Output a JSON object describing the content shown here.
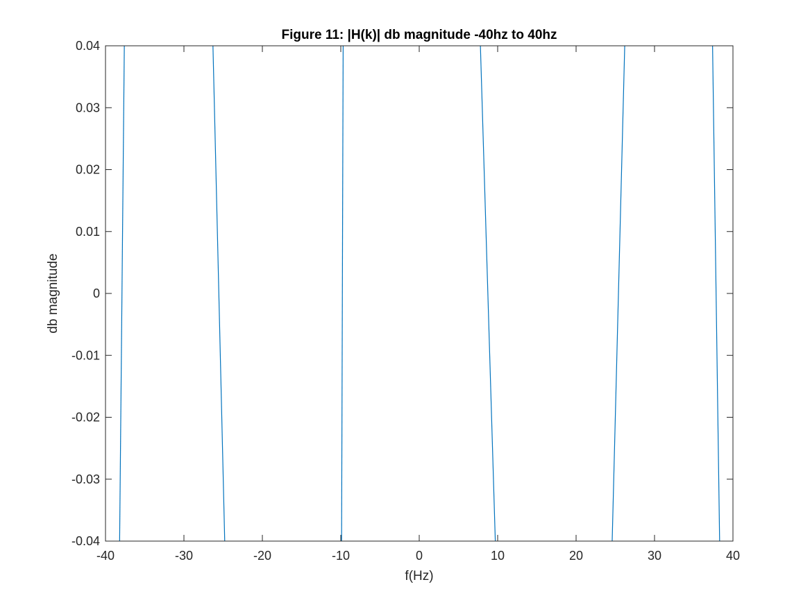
{
  "chart_data": {
    "type": "line",
    "title": "Figure 11: |H(k)| db magnitude -40hz to 40hz",
    "xlabel": "f(Hz)",
    "ylabel": "db magnitude",
    "xlim": [
      -40,
      40
    ],
    "ylim": [
      -0.04,
      0.04
    ],
    "xticks": [
      -40,
      -30,
      -20,
      -10,
      0,
      10,
      20,
      30,
      40
    ],
    "xtick_labels": [
      "-40",
      "-30",
      "-20",
      "-10",
      "0",
      "10",
      "20",
      "30",
      "40"
    ],
    "yticks": [
      -0.04,
      -0.03,
      -0.02,
      -0.01,
      0,
      0.01,
      0.02,
      0.03,
      0.04
    ],
    "ytick_labels": [
      "-0.04",
      "-0.03",
      "-0.02",
      "-0.01",
      "0",
      "0.01",
      "0.02",
      "0.03",
      "0.04"
    ],
    "grid": false,
    "legend": false,
    "line_color": "#0072BD",
    "series": [
      {
        "segments": [
          {
            "x": [
              -38.2,
              -37.6
            ],
            "y": [
              -0.04,
              0.04
            ]
          },
          {
            "x": [
              -26.3,
              -24.8
            ],
            "y": [
              0.04,
              -0.04
            ]
          },
          {
            "x": [
              -9.9,
              -9.7
            ],
            "y": [
              -0.04,
              0.04
            ]
          },
          {
            "x": [
              7.8,
              9.7
            ],
            "y": [
              0.04,
              -0.04
            ]
          },
          {
            "x": [
              24.6,
              26.2
            ],
            "y": [
              -0.04,
              0.04
            ]
          },
          {
            "x": [
              37.4,
              38.3
            ],
            "y": [
              0.04,
              -0.04
            ]
          }
        ]
      }
    ]
  }
}
